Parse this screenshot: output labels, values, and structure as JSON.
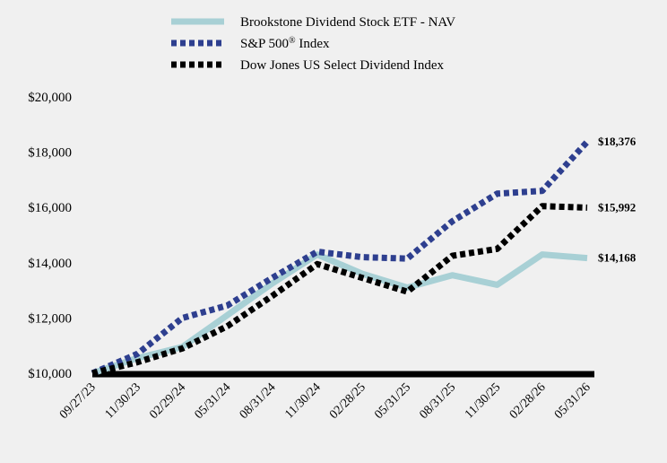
{
  "chart_data": {
    "type": "line",
    "title": "",
    "xlabel": "",
    "ylabel": "",
    "x": [
      "09/27/23",
      "11/30/23",
      "02/29/24",
      "05/31/24",
      "08/31/24",
      "11/30/24",
      "02/28/25",
      "05/31/25",
      "08/31/25",
      "11/30/25",
      "02/28/26",
      "05/31/26"
    ],
    "ylim": [
      10000,
      20000
    ],
    "yticks": [
      10000,
      12000,
      14000,
      16000,
      18000,
      20000
    ],
    "ytick_labels": [
      "$10,000",
      "$12,000",
      "$14,000",
      "$16,000",
      "$18,000",
      "$20,000"
    ],
    "grid": false,
    "legend_position": "top",
    "series": [
      {
        "name": "Brookstone Dividend Stock ETF - NAV",
        "legend_text": "Brookstone Dividend Stock ETF - NAV",
        "legend_sup": "",
        "legend_after": "",
        "color": "#a8d0d5",
        "style": "solid",
        "values": [
          10000,
          10550,
          10950,
          12100,
          13250,
          14300,
          13600,
          13100,
          13550,
          13200,
          14300,
          14168
        ],
        "end_label": "$14,168"
      },
      {
        "name": "S&P 500® Index",
        "legend_text": "S&P 500",
        "legend_sup": "®",
        "legend_after": " Index",
        "color": "#2e3f8f",
        "style": "dotted",
        "values": [
          10000,
          10700,
          12000,
          12450,
          13450,
          14400,
          14200,
          14150,
          15500,
          16500,
          16600,
          18376
        ],
        "end_label": "$18,376"
      },
      {
        "name": "Dow Jones US Select Dividend Index",
        "legend_text": "Dow Jones US Select Dividend Index",
        "legend_sup": "",
        "legend_after": "",
        "color": "#000000",
        "style": "dotted",
        "values": [
          10000,
          10400,
          10900,
          11700,
          12800,
          13950,
          13450,
          12950,
          14250,
          14500,
          16050,
          15992
        ],
        "end_label": "$15,992"
      }
    ]
  }
}
